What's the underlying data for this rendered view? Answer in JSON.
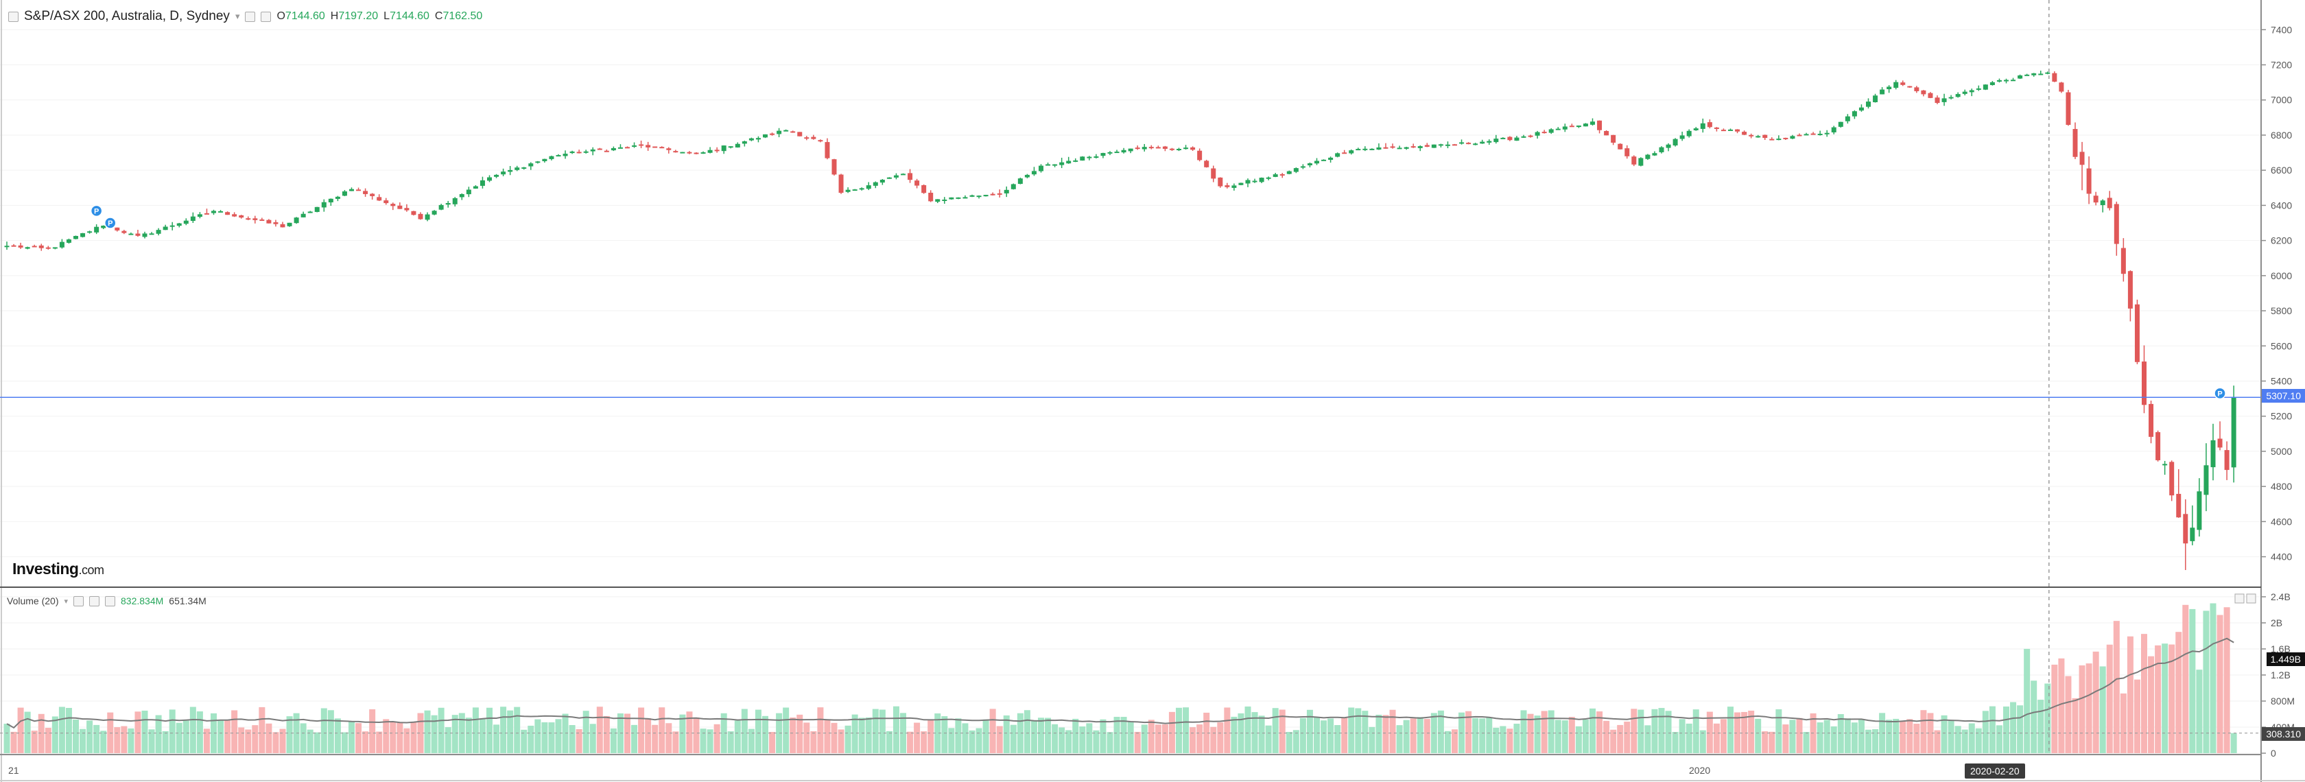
{
  "header": {
    "symbol": "S&P/ASX 200, Australia, D, Sydney",
    "open_label": "O",
    "open": "7144.60",
    "high_label": "H",
    "high": "7197.20",
    "low_label": "L",
    "low": "7144.60",
    "close_label": "C",
    "close": "7162.50"
  },
  "volume_header": {
    "label": "Volume (20)",
    "value": "832.834M",
    "ma_value": "651.34M"
  },
  "brand": {
    "name": "Investing",
    "suffix": ".com"
  },
  "badges": {
    "last_price": "5307.10",
    "volume_ma": "1.449B",
    "volume_last": "308.310",
    "crosshair_date": "2020-02-20"
  },
  "colors": {
    "up": "#26a65b",
    "down": "#e05858",
    "vol_up": "#a3e4c5",
    "vol_down": "#f8b4b4",
    "price_line": "#4f7df2"
  },
  "chart_data": [
    {
      "type": "candlestick",
      "x_labels": [
        "21",
        "2020",
        "2020-02-20"
      ],
      "yticks": [
        4400,
        4600,
        4800,
        5000,
        5200,
        5400,
        5600,
        5800,
        6000,
        6200,
        6400,
        6600,
        6800,
        7000,
        7200,
        7400
      ],
      "ylim": [
        4250,
        7530
      ],
      "last_price": 5307.1,
      "anchors": [
        {
          "i": 0,
          "c": 6170
        },
        {
          "i": 6,
          "c": 6150
        },
        {
          "i": 14,
          "c": 6290
        },
        {
          "i": 19,
          "c": 6220
        },
        {
          "i": 30,
          "c": 6370
        },
        {
          "i": 40,
          "c": 6280
        },
        {
          "i": 50,
          "c": 6500
        },
        {
          "i": 60,
          "c": 6330
        },
        {
          "i": 70,
          "c": 6560
        },
        {
          "i": 80,
          "c": 6690
        },
        {
          "i": 92,
          "c": 6740
        },
        {
          "i": 100,
          "c": 6690
        },
        {
          "i": 113,
          "c": 6830
        },
        {
          "i": 118,
          "c": 6760
        },
        {
          "i": 121,
          "c": 6470
        },
        {
          "i": 130,
          "c": 6580
        },
        {
          "i": 134,
          "c": 6430
        },
        {
          "i": 144,
          "c": 6470
        },
        {
          "i": 150,
          "c": 6620
        },
        {
          "i": 163,
          "c": 6730
        },
        {
          "i": 172,
          "c": 6720
        },
        {
          "i": 176,
          "c": 6500
        },
        {
          "i": 185,
          "c": 6580
        },
        {
          "i": 195,
          "c": 6720
        },
        {
          "i": 208,
          "c": 6740
        },
        {
          "i": 218,
          "c": 6780
        },
        {
          "i": 230,
          "c": 6870
        },
        {
          "i": 236,
          "c": 6640
        },
        {
          "i": 246,
          "c": 6860
        },
        {
          "i": 256,
          "c": 6770
        },
        {
          "i": 264,
          "c": 6820
        },
        {
          "i": 274,
          "c": 7110
        },
        {
          "i": 280,
          "c": 6990
        },
        {
          "i": 288,
          "c": 7100
        },
        {
          "i": 296,
          "c": 7162
        },
        {
          "i": 298,
          "c": 7040
        },
        {
          "i": 300,
          "c": 6680
        },
        {
          "i": 302,
          "c": 6440
        },
        {
          "i": 305,
          "c": 6380
        },
        {
          "i": 308,
          "c": 5780
        },
        {
          "i": 310,
          "c": 5300
        },
        {
          "i": 312,
          "c": 5000
        },
        {
          "i": 314,
          "c": 4750
        },
        {
          "i": 316,
          "c": 4550
        },
        {
          "i": 318,
          "c": 4700
        },
        {
          "i": 320,
          "c": 5050
        },
        {
          "i": 322,
          "c": 4850
        },
        {
          "i": 323,
          "c": 5307
        }
      ]
    },
    {
      "type": "bar",
      "name": "Volume (20)",
      "yticks": [
        0,
        400000000,
        800000000,
        1200000000,
        1600000000,
        2000000000,
        2400000000
      ],
      "ytick_labels": [
        "0",
        "400M",
        "800M",
        "1.2B",
        "1.6B",
        "2B",
        "2.4B"
      ],
      "ylim": [
        0,
        2400000000
      ],
      "base_volume": 580000000
    }
  ]
}
